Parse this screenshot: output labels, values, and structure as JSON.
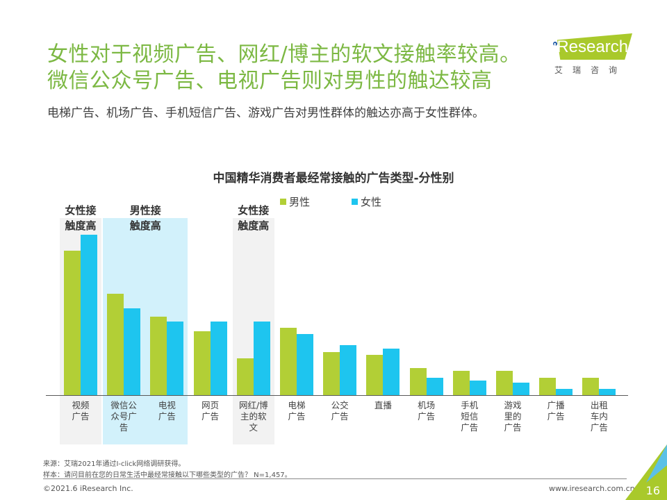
{
  "header": {
    "title_line1": "女性对于视频广告、网红/博主的软文接触率较高。",
    "title_line2": "微信公众号广告、电视广告则对男性的触达较高",
    "subtitle": "电梯广告、机场广告、手机短信广告、游戏广告对男性群体的触达亦高于女性群体。"
  },
  "logo": {
    "brand": "iResearch",
    "cn": "艾瑞咨询",
    "color": "#a9c92b"
  },
  "highlights": [
    {
      "label_line1": "女性接",
      "label_line2": "触度高",
      "style": "grey",
      "categories": [
        0
      ]
    },
    {
      "label_line1": "男性接",
      "label_line2": "触度高",
      "style": "blue",
      "categories": [
        1,
        2
      ]
    },
    {
      "label_line1": "女性接",
      "label_line2": "触度高",
      "style": "grey",
      "categories": [
        4
      ]
    }
  ],
  "chart_data": {
    "type": "bar",
    "title": "中国精华消费者最经常接触的广告类型-分性别",
    "xlabel": "",
    "ylabel": "",
    "ylim": [
      0,
      100
    ],
    "grid": false,
    "legend_position": "top-center",
    "value_note": "values are relative (no y-axis shown); scaled to tallest bar = 100",
    "categories": [
      "视频\n广告",
      "微信公\n众号广\n告",
      "电视\n广告",
      "网页\n广告",
      "网红/博\n主的软\n文",
      "电梯\n广告",
      "公交\n广告",
      "直播",
      "机场\n广告",
      "手机\n短信\n广告",
      "游戏\n里的\n广告",
      "广播\n广告",
      "出租\n车内\n广告"
    ],
    "series": [
      {
        "name": "男性",
        "color": "#b2cf36",
        "values": [
          90,
          63,
          49,
          40,
          23,
          42,
          27,
          25,
          17,
          15,
          15,
          11,
          11
        ]
      },
      {
        "name": "女性",
        "color": "#1ec5ef",
        "values": [
          100,
          54,
          46,
          46,
          46,
          38,
          31,
          29,
          11,
          9,
          8,
          4,
          4
        ]
      }
    ]
  },
  "footer": {
    "source": "来源：艾瑞2021年通过I-click网络调研获得。",
    "sample": "样本：请问目前在您的日常生活中最经常接触以下哪些类型的广告？ N=1,457。",
    "copyright": "©2021.6 iResearch Inc.",
    "url": "www.iresearch.com.cn",
    "page": "16"
  }
}
